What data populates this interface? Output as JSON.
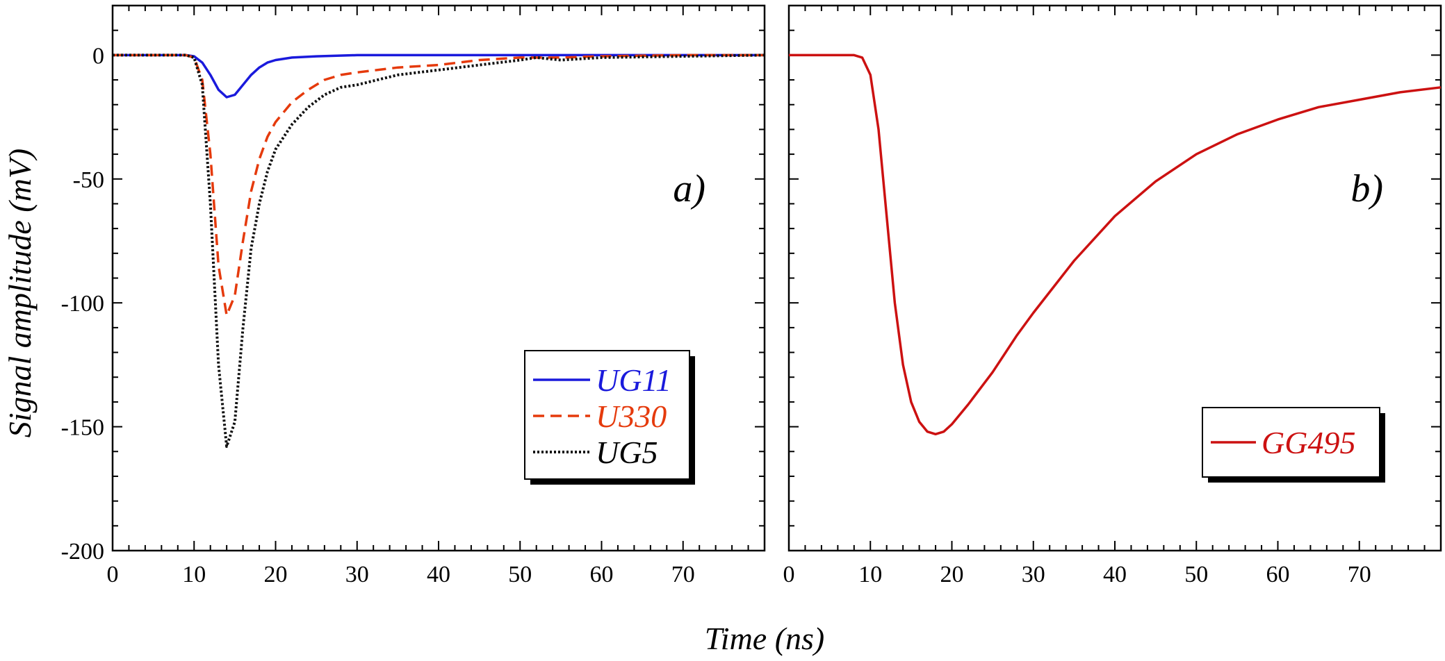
{
  "chart_data": [
    {
      "type": "line",
      "panel_label": "a)",
      "xlim": [
        0,
        80
      ],
      "ylim": [
        -200,
        20
      ],
      "x_ticks": [
        0,
        10,
        20,
        30,
        40,
        50,
        60,
        70
      ],
      "y_ticks": [
        0,
        -50,
        -100,
        -150,
        -200
      ],
      "y_tick_labels": [
        "0",
        "-50",
        "-100",
        "-150",
        "-200"
      ],
      "legend_position": "bottom-right",
      "series": [
        {
          "name": "UG11",
          "color": "#1a1adc",
          "style": "solid",
          "x": [
            0,
            9,
            10,
            11,
            12,
            13,
            14,
            15,
            16,
            17,
            18,
            19,
            20,
            22,
            25,
            30,
            40,
            50,
            60,
            70,
            80
          ],
          "y": [
            0,
            0,
            -0.5,
            -3,
            -8,
            -14,
            -17,
            -16,
            -12,
            -8,
            -5,
            -3,
            -2,
            -1,
            -0.5,
            0,
            0,
            0,
            0,
            0,
            0
          ]
        },
        {
          "name": "U330",
          "color": "#e53a0c",
          "style": "dashed",
          "x": [
            0,
            9,
            10,
            11,
            12,
            13,
            14,
            15,
            16,
            17,
            18,
            19,
            20,
            22,
            24,
            26,
            28,
            30,
            35,
            40,
            45,
            50,
            55,
            60,
            70,
            80
          ],
          "y": [
            0,
            0,
            -1,
            -10,
            -40,
            -85,
            -105,
            -97,
            -75,
            -55,
            -42,
            -33,
            -27,
            -19,
            -14,
            -10,
            -8,
            -7,
            -5,
            -4,
            -2,
            -1,
            -1,
            -0.5,
            0,
            0
          ]
        },
        {
          "name": "UG5",
          "color": "#111111",
          "style": "dotted",
          "x": [
            0,
            9,
            10,
            11,
            12,
            13,
            14,
            15,
            16,
            17,
            18,
            19,
            20,
            22,
            24,
            26,
            28,
            30,
            35,
            40,
            45,
            50,
            52,
            55,
            60,
            70,
            80
          ],
          "y": [
            0,
            0,
            -1,
            -12,
            -60,
            -125,
            -158,
            -148,
            -110,
            -78,
            -60,
            -47,
            -38,
            -28,
            -21,
            -16,
            -13,
            -12,
            -8,
            -6,
            -4,
            -2,
            -1,
            -2,
            -1,
            -0.5,
            0
          ]
        }
      ]
    },
    {
      "type": "line",
      "panel_label": "b)",
      "xlim": [
        0,
        80
      ],
      "ylim": [
        -200,
        20
      ],
      "x_ticks": [
        0,
        10,
        20,
        30,
        40,
        50,
        60,
        70
      ],
      "y_ticks": [
        0,
        -50,
        -100,
        -150,
        -200
      ],
      "legend_position": "bottom-right",
      "series": [
        {
          "name": "GG495",
          "color": "#cc1111",
          "style": "solid",
          "x": [
            0,
            8,
            9,
            10,
            11,
            12,
            13,
            14,
            15,
            16,
            17,
            18,
            19,
            20,
            22,
            25,
            28,
            30,
            35,
            40,
            45,
            50,
            55,
            60,
            65,
            70,
            75,
            80
          ],
          "y": [
            0,
            0,
            -1,
            -8,
            -30,
            -65,
            -100,
            -125,
            -140,
            -148,
            -152,
            -153,
            -152,
            -149,
            -141,
            -128,
            -113,
            -104,
            -83,
            -65,
            -51,
            -40,
            -32,
            -26,
            -21,
            -18,
            -15,
            -13
          ]
        }
      ]
    }
  ],
  "xlabel": "Time (ns)",
  "ylabel": "Signal amplitude (mV)"
}
